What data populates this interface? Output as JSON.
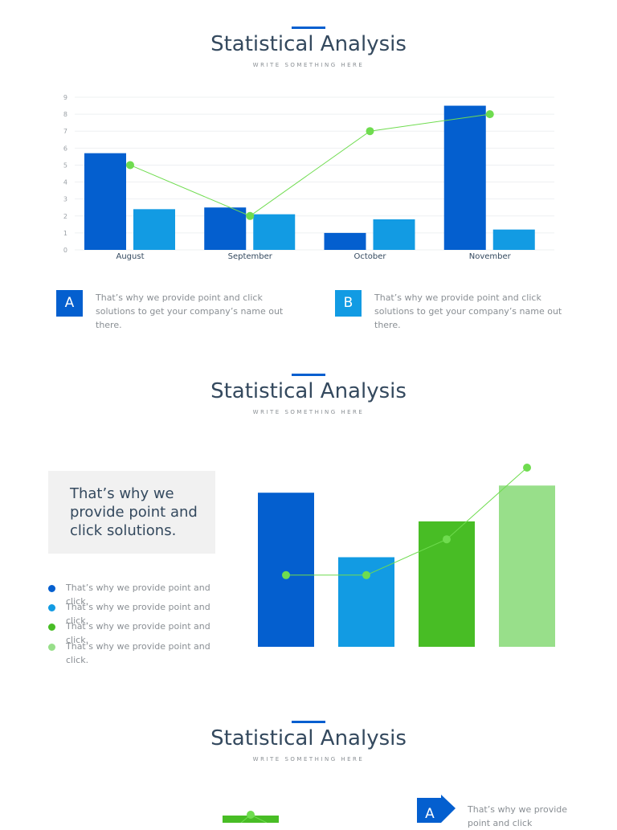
{
  "section1": {
    "title": "Statistical Analysis",
    "subtitle": "WRITE SOMETHING HERE",
    "chart_data": {
      "type": "bar",
      "categories": [
        "August",
        "September",
        "October",
        "November"
      ],
      "series": [
        {
          "values": [
            5.7,
            2.5,
            1.0,
            8.5
          ],
          "color": "#045fcf"
        },
        {
          "values": [
            2.4,
            2.1,
            1.8,
            1.2
          ],
          "color": "#129be3"
        }
      ],
      "line_series": {
        "values": [
          5.0,
          2.0,
          7.0,
          8.0
        ],
        "color": "#6fdc4f"
      },
      "ylim": [
        0,
        9
      ],
      "yticks": [
        "0",
        "1",
        "2",
        "3",
        "4",
        "5",
        "6",
        "7",
        "8",
        "9"
      ],
      "grid": true
    },
    "notes": [
      {
        "badge": "A",
        "color": "#045fcf",
        "text": "That’s why we provide point and click solutions to get your company’s name out there."
      },
      {
        "badge": "B",
        "color": "#129be3",
        "text": "That’s why we provide point and click solutions to get your company’s name out there."
      }
    ]
  },
  "section2": {
    "title": "Statistical Analysis",
    "subtitle": "WRITE SOMETHING HERE",
    "quote": "That’s why we provide point and click solutions.",
    "legend": [
      {
        "color": "#045fcf",
        "text": "That’s why we provide point and click."
      },
      {
        "color": "#129be3",
        "text": "That’s why we provide point and click."
      },
      {
        "color": "#48bd25",
        "text": "That’s why we provide point and click."
      },
      {
        "color": "#98df8a",
        "text": "That’s why we provide point and click."
      }
    ],
    "chart_data": {
      "type": "bar",
      "bars": [
        {
          "value": 8.6,
          "color": "#045fcf"
        },
        {
          "value": 5.0,
          "color": "#129be3"
        },
        {
          "value": 7.0,
          "color": "#48bd25"
        },
        {
          "value": 9.0,
          "color": "#98df8a"
        }
      ],
      "line_series": {
        "values": [
          4.0,
          4.0,
          6.0,
          10.0
        ],
        "color": "#6fdc4f"
      },
      "ylim": [
        0,
        10
      ]
    }
  },
  "section3": {
    "title": "Statistical Analysis",
    "subtitle": "WRITE SOMETHING HERE",
    "badge": "A",
    "badge_color": "#045fcf",
    "text": "That’s why we provide point and click",
    "bar_color": "#48bd25"
  }
}
